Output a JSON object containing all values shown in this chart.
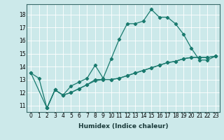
{
  "xlabel": "Humidex (Indice chaleur)",
  "background_color": "#cce9ea",
  "grid_color": "#b0d0d3",
  "line_color": "#1a7a6e",
  "xlim": [
    -0.5,
    23.5
  ],
  "ylim": [
    10.5,
    18.8
  ],
  "yticks": [
    11,
    12,
    13,
    14,
    15,
    16,
    17,
    18
  ],
  "xticks": [
    0,
    1,
    2,
    3,
    4,
    5,
    6,
    7,
    8,
    9,
    10,
    11,
    12,
    13,
    14,
    15,
    16,
    17,
    18,
    19,
    20,
    21,
    22,
    23
  ],
  "series1_x": [
    0,
    1,
    2,
    3,
    4,
    5,
    6,
    7,
    8,
    9,
    10,
    11,
    12,
    13,
    14,
    15,
    16,
    17,
    18,
    19,
    20,
    21,
    22,
    23
  ],
  "series1_y": [
    13.5,
    13.1,
    10.8,
    12.2,
    11.8,
    12.5,
    12.8,
    13.1,
    14.1,
    13.1,
    14.6,
    16.1,
    17.3,
    17.3,
    17.5,
    18.4,
    17.8,
    17.8,
    17.3,
    16.5,
    15.4,
    14.5,
    14.5,
    14.8
  ],
  "series2_x": [
    0,
    2,
    3,
    4,
    5,
    6,
    7,
    8,
    10,
    11,
    12,
    13,
    14,
    15,
    16,
    17,
    18,
    19,
    20,
    21,
    22,
    23
  ],
  "series2_y": [
    13.5,
    10.8,
    12.2,
    11.8,
    12.0,
    12.3,
    12.6,
    13.0,
    13.0,
    13.1,
    13.3,
    13.5,
    13.7,
    13.9,
    14.1,
    14.3,
    14.4,
    14.6,
    14.7,
    14.7,
    14.7,
    14.8
  ],
  "series3_x": [
    2,
    3,
    4,
    5,
    6,
    7,
    8,
    9,
    10,
    11,
    12,
    13,
    14,
    15,
    16,
    17,
    18,
    19,
    20,
    21,
    22,
    23
  ],
  "series3_y": [
    10.8,
    12.2,
    11.8,
    12.0,
    12.3,
    12.6,
    12.9,
    13.0,
    13.0,
    13.1,
    13.3,
    13.5,
    13.7,
    13.9,
    14.1,
    14.3,
    14.4,
    14.6,
    14.7,
    14.7,
    14.7,
    14.8
  ],
  "xlabel_fontsize": 6.5,
  "tick_fontsize": 5.5
}
